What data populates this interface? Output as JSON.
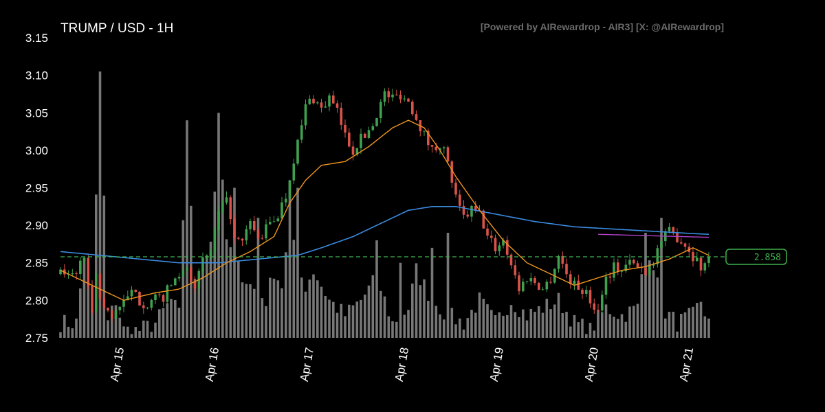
{
  "chart_data": {
    "type": "candlestick",
    "title": "TRUMP / USD - 1H",
    "watermark": "[Powered by AIRewardrop - AIR3] [X: @AIRewardrop]",
    "y_ticks": [
      "2.75",
      "2.80",
      "2.85",
      "2.90",
      "2.95",
      "3.00",
      "3.05",
      "3.10",
      "3.15"
    ],
    "ylim": [
      2.75,
      3.15
    ],
    "x_ticks": [
      "Apr 15",
      "Apr 16",
      "Apr 17",
      "Apr 18",
      "Apr 19",
      "Apr 20",
      "Apr 21"
    ],
    "x_tick_hours": [
      15,
      39,
      63,
      87,
      111,
      135,
      159
    ],
    "x_range_hours": [
      0,
      168
    ],
    "current_price": 2.858,
    "current_price_label": "2.858",
    "grid": false,
    "colors": {
      "background": "#000000",
      "up": "#3fa14f",
      "down": "#d9534a",
      "volume": "#8c8c8c",
      "ma_fast": "#f0961e",
      "ma_slow": "#3b8be0",
      "ma_short": "#b040c8",
      "price_line": "#3fb24f"
    },
    "close_anchors": [
      [
        0,
        2.835
      ],
      [
        4,
        2.84
      ],
      [
        6,
        2.85
      ],
      [
        7,
        2.825
      ],
      [
        8,
        2.78
      ],
      [
        9,
        2.84
      ],
      [
        10,
        2.8
      ],
      [
        11,
        2.79
      ],
      [
        13,
        2.775
      ],
      [
        14,
        2.79
      ],
      [
        16,
        2.795
      ],
      [
        18,
        2.81
      ],
      [
        20,
        2.8
      ],
      [
        22,
        2.795
      ],
      [
        24,
        2.8
      ],
      [
        26,
        2.805
      ],
      [
        28,
        2.82
      ],
      [
        30,
        2.835
      ],
      [
        32,
        2.845
      ],
      [
        34,
        2.82
      ],
      [
        36,
        2.85
      ],
      [
        38,
        2.865
      ],
      [
        40,
        2.915
      ],
      [
        42,
        2.93
      ],
      [
        43,
        2.915
      ],
      [
        44,
        2.88
      ],
      [
        46,
        2.875
      ],
      [
        48,
        2.905
      ],
      [
        50,
        2.88
      ],
      [
        52,
        2.895
      ],
      [
        55,
        2.915
      ],
      [
        57,
        2.94
      ],
      [
        59,
        2.99
      ],
      [
        61,
        3.03
      ],
      [
        62,
        3.06
      ],
      [
        64,
        3.07
      ],
      [
        66,
        3.055
      ],
      [
        68,
        3.07
      ],
      [
        70,
        3.05
      ],
      [
        72,
        3.02
      ],
      [
        74,
        3.0
      ],
      [
        75,
        3.01
      ],
      [
        77,
        3.02
      ],
      [
        79,
        3.035
      ],
      [
        80,
        3.05
      ],
      [
        82,
        3.075
      ],
      [
        84,
        3.07
      ],
      [
        86,
        3.075
      ],
      [
        88,
        3.065
      ],
      [
        90,
        3.045
      ],
      [
        92,
        3.02
      ],
      [
        94,
        3.0
      ],
      [
        96,
        3.01
      ],
      [
        97,
        3.0
      ],
      [
        98,
        2.98
      ],
      [
        99,
        2.96
      ],
      [
        100,
        2.935
      ],
      [
        101,
        2.92
      ],
      [
        102,
        2.91
      ],
      [
        104,
        2.92
      ],
      [
        106,
        2.915
      ],
      [
        108,
        2.885
      ],
      [
        110,
        2.87
      ],
      [
        112,
        2.88
      ],
      [
        114,
        2.85
      ],
      [
        116,
        2.815
      ],
      [
        118,
        2.83
      ],
      [
        120,
        2.825
      ],
      [
        122,
        2.815
      ],
      [
        124,
        2.83
      ],
      [
        126,
        2.86
      ],
      [
        128,
        2.835
      ],
      [
        130,
        2.82
      ],
      [
        132,
        2.815
      ],
      [
        134,
        2.8
      ],
      [
        136,
        2.785
      ],
      [
        137,
        2.815
      ],
      [
        138,
        2.83
      ],
      [
        140,
        2.845
      ],
      [
        142,
        2.84
      ],
      [
        144,
        2.85
      ],
      [
        146,
        2.845
      ],
      [
        148,
        2.84
      ],
      [
        150,
        2.855
      ],
      [
        152,
        2.88
      ],
      [
        154,
        2.89
      ],
      [
        156,
        2.885
      ],
      [
        158,
        2.875
      ],
      [
        160,
        2.86
      ],
      [
        162,
        2.845
      ],
      [
        163,
        2.85
      ],
      [
        164,
        2.858
      ]
    ],
    "ma_fast_anchors": [
      [
        0,
        2.84
      ],
      [
        8,
        2.82
      ],
      [
        16,
        2.8
      ],
      [
        24,
        2.81
      ],
      [
        30,
        2.815
      ],
      [
        36,
        2.83
      ],
      [
        42,
        2.85
      ],
      [
        48,
        2.865
      ],
      [
        54,
        2.885
      ],
      [
        58,
        2.93
      ],
      [
        62,
        2.96
      ],
      [
        66,
        2.98
      ],
      [
        72,
        2.985
      ],
      [
        78,
        3.005
      ],
      [
        84,
        3.03
      ],
      [
        88,
        3.04
      ],
      [
        92,
        3.03
      ],
      [
        96,
        3.0
      ],
      [
        100,
        2.965
      ],
      [
        106,
        2.92
      ],
      [
        112,
        2.88
      ],
      [
        118,
        2.85
      ],
      [
        124,
        2.835
      ],
      [
        130,
        2.82
      ],
      [
        136,
        2.83
      ],
      [
        142,
        2.84
      ],
      [
        148,
        2.845
      ],
      [
        154,
        2.855
      ],
      [
        160,
        2.87
      ],
      [
        164,
        2.86
      ]
    ],
    "ma_slow_anchors": [
      [
        0,
        2.865
      ],
      [
        10,
        2.86
      ],
      [
        20,
        2.855
      ],
      [
        30,
        2.85
      ],
      [
        40,
        2.85
      ],
      [
        50,
        2.855
      ],
      [
        60,
        2.86
      ],
      [
        66,
        2.87
      ],
      [
        74,
        2.885
      ],
      [
        82,
        2.905
      ],
      [
        88,
        2.92
      ],
      [
        94,
        2.925
      ],
      [
        100,
        2.925
      ],
      [
        110,
        2.915
      ],
      [
        120,
        2.905
      ],
      [
        130,
        2.898
      ],
      [
        140,
        2.895
      ],
      [
        150,
        2.892
      ],
      [
        160,
        2.889
      ],
      [
        164,
        2.888
      ]
    ],
    "ma_short_anchors": [
      [
        136,
        2.888
      ],
      [
        150,
        2.886
      ],
      [
        164,
        2.884
      ]
    ],
    "volume_anchors": [
      [
        0,
        2.77
      ],
      [
        4,
        2.77
      ],
      [
        6,
        2.86
      ],
      [
        8,
        2.78
      ],
      [
        10,
        3.1
      ],
      [
        12,
        2.77
      ],
      [
        14,
        2.8
      ],
      [
        16,
        2.76
      ],
      [
        20,
        2.76
      ],
      [
        24,
        2.77
      ],
      [
        28,
        2.8
      ],
      [
        30,
        2.78
      ],
      [
        32,
        3.04
      ],
      [
        34,
        2.82
      ],
      [
        36,
        2.85
      ],
      [
        38,
        2.88
      ],
      [
        40,
        3.02
      ],
      [
        42,
        2.88
      ],
      [
        44,
        2.85
      ],
      [
        48,
        2.82
      ],
      [
        52,
        2.8
      ],
      [
        54,
        2.84
      ],
      [
        56,
        2.82
      ],
      [
        58,
        2.9
      ],
      [
        60,
        2.84
      ],
      [
        62,
        2.82
      ],
      [
        64,
        2.84
      ],
      [
        68,
        2.8
      ],
      [
        72,
        2.78
      ],
      [
        76,
        2.8
      ],
      [
        80,
        2.83
      ],
      [
        84,
        2.77
      ],
      [
        88,
        2.79
      ],
      [
        90,
        2.84
      ],
      [
        94,
        2.8
      ],
      [
        98,
        2.78
      ],
      [
        102,
        2.77
      ],
      [
        106,
        2.8
      ],
      [
        110,
        2.77
      ],
      [
        114,
        2.8
      ],
      [
        118,
        2.78
      ],
      [
        122,
        2.79
      ],
      [
        126,
        2.8
      ],
      [
        130,
        2.77
      ],
      [
        134,
        2.76
      ],
      [
        138,
        2.79
      ],
      [
        142,
        2.78
      ],
      [
        146,
        2.79
      ],
      [
        148,
        2.88
      ],
      [
        150,
        2.85
      ],
      [
        152,
        2.79
      ],
      [
        156,
        2.77
      ],
      [
        160,
        2.78
      ],
      [
        162,
        2.8
      ],
      [
        164,
        2.77
      ]
    ],
    "volume_spikes": [
      [
        10,
        3.105
      ],
      [
        32,
        3.04
      ],
      [
        40,
        3.05
      ],
      [
        44,
        2.95
      ],
      [
        50,
        2.91
      ],
      [
        58,
        2.96
      ],
      [
        60,
        2.95
      ],
      [
        80,
        2.88
      ],
      [
        86,
        2.85
      ],
      [
        94,
        2.87
      ],
      [
        98,
        2.89
      ],
      [
        148,
        2.89
      ],
      [
        152,
        2.91
      ]
    ]
  }
}
